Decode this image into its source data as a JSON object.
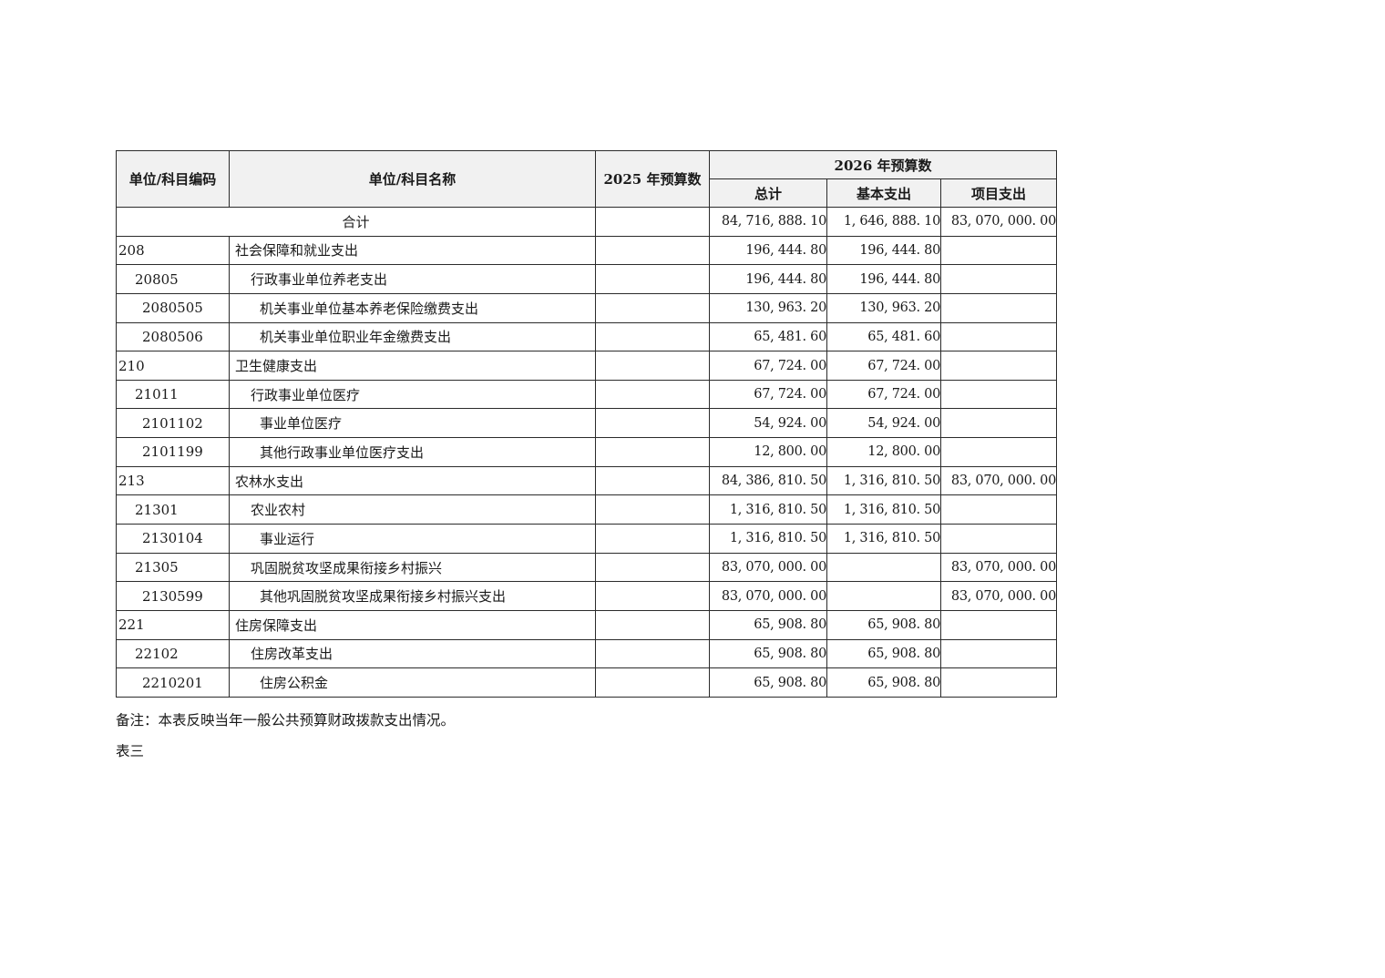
{
  "page": {
    "note": "备注：本表反映当年一般公共预算财政拨款支出情况。",
    "page_label": "表三"
  },
  "colors": {
    "header_bg": "#f1f1f1",
    "border": "#2b2b2b",
    "text": "#1a1a1a",
    "page_bg": "#ffffff"
  },
  "table": {
    "header": {
      "code": "单位/科目编码",
      "name": "单位/科目名称",
      "y2025": "2025 年预算数",
      "y2026": "2026 年预算数",
      "total": "总计",
      "basic": "基本支出",
      "project": "项目支出"
    },
    "rows": [
      {
        "is_total": true,
        "code": "",
        "level": 0,
        "name": "合计",
        "y2025": "",
        "total": "84, 716, 888. 10",
        "basic": "1, 646, 888. 10",
        "project": "83, 070, 000. 00"
      },
      {
        "is_total": false,
        "code": "208",
        "level": 1,
        "name": "社会保障和就业支出",
        "y2025": "",
        "total": "196, 444. 80",
        "basic": "196, 444. 80",
        "project": ""
      },
      {
        "is_total": false,
        "code": "20805",
        "level": 2,
        "name": "行政事业单位养老支出",
        "y2025": "",
        "total": "196, 444. 80",
        "basic": "196, 444. 80",
        "project": ""
      },
      {
        "is_total": false,
        "code": "2080505",
        "level": 3,
        "name": "机关事业单位基本养老保险缴费支出",
        "y2025": "",
        "total": "130, 963. 20",
        "basic": "130, 963. 20",
        "project": ""
      },
      {
        "is_total": false,
        "code": "2080506",
        "level": 3,
        "name": "机关事业单位职业年金缴费支出",
        "y2025": "",
        "total": "65, 481. 60",
        "basic": "65, 481. 60",
        "project": ""
      },
      {
        "is_total": false,
        "code": "210",
        "level": 1,
        "name": "卫生健康支出",
        "y2025": "",
        "total": "67, 724. 00",
        "basic": "67, 724. 00",
        "project": ""
      },
      {
        "is_total": false,
        "code": "21011",
        "level": 2,
        "name": "行政事业单位医疗",
        "y2025": "",
        "total": "67, 724. 00",
        "basic": "67, 724. 00",
        "project": ""
      },
      {
        "is_total": false,
        "code": "2101102",
        "level": 3,
        "name": "事业单位医疗",
        "y2025": "",
        "total": "54, 924. 00",
        "basic": "54, 924. 00",
        "project": ""
      },
      {
        "is_total": false,
        "code": "2101199",
        "level": 3,
        "name": "其他行政事业单位医疗支出",
        "y2025": "",
        "total": "12, 800. 00",
        "basic": "12, 800. 00",
        "project": ""
      },
      {
        "is_total": false,
        "code": "213",
        "level": 1,
        "name": "农林水支出",
        "y2025": "",
        "total": "84, 386, 810. 50",
        "basic": "1, 316, 810. 50",
        "project": "83, 070, 000. 00"
      },
      {
        "is_total": false,
        "code": "21301",
        "level": 2,
        "name": "农业农村",
        "y2025": "",
        "total": "1, 316, 810. 50",
        "basic": "1, 316, 810. 50",
        "project": ""
      },
      {
        "is_total": false,
        "code": "2130104",
        "level": 3,
        "name": "事业运行",
        "y2025": "",
        "total": "1, 316, 810. 50",
        "basic": "1, 316, 810. 50",
        "project": ""
      },
      {
        "is_total": false,
        "code": "21305",
        "level": 2,
        "name": "巩固脱贫攻坚成果衔接乡村振兴",
        "y2025": "",
        "total": "83, 070, 000. 00",
        "basic": "",
        "project": "83, 070, 000. 00"
      },
      {
        "is_total": false,
        "code": "2130599",
        "level": 3,
        "name": "其他巩固脱贫攻坚成果衔接乡村振兴支出",
        "y2025": "",
        "total": "83, 070, 000. 00",
        "basic": "",
        "project": "83, 070, 000. 00"
      },
      {
        "is_total": false,
        "code": "221",
        "level": 1,
        "name": "住房保障支出",
        "y2025": "",
        "total": "65, 908. 80",
        "basic": "65, 908. 80",
        "project": ""
      },
      {
        "is_total": false,
        "code": "22102",
        "level": 2,
        "name": "住房改革支出",
        "y2025": "",
        "total": "65, 908. 80",
        "basic": "65, 908. 80",
        "project": ""
      },
      {
        "is_total": false,
        "code": "2210201",
        "level": 3,
        "name": "住房公积金",
        "y2025": "",
        "total": "65, 908. 80",
        "basic": "65, 908. 80",
        "project": ""
      }
    ]
  }
}
